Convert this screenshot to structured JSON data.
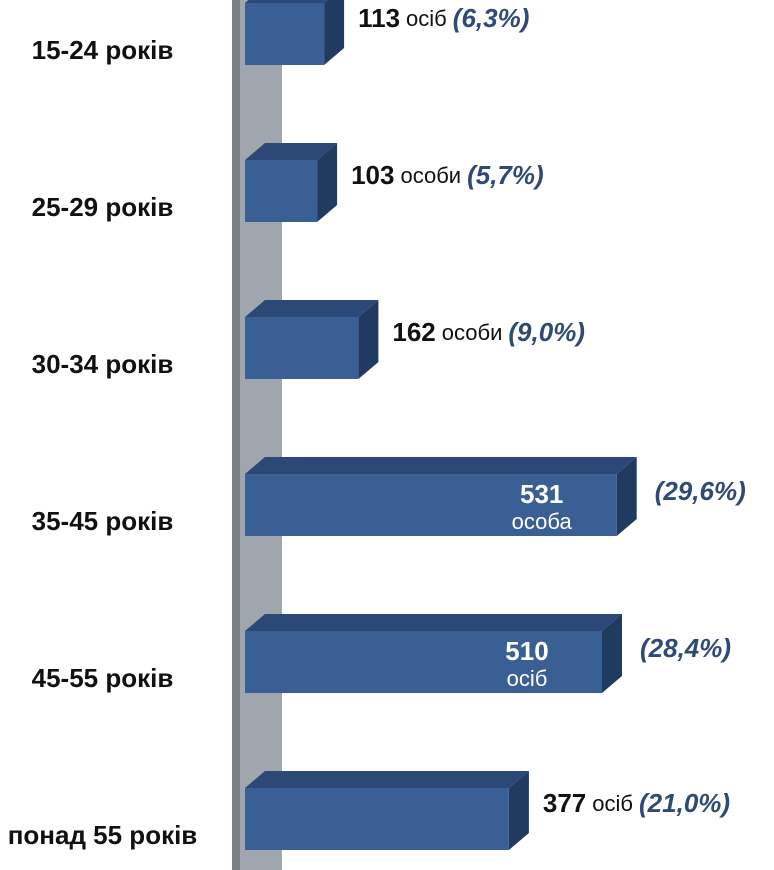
{
  "chart_data": {
    "type": "bar3d-horizontal",
    "categories": [
      "15-24 років",
      "25-29 років",
      "30-34 років",
      "35-45 років",
      "45-55 років",
      "понад 55 років"
    ],
    "values": [
      113,
      103,
      162,
      531,
      510,
      377
    ],
    "units": [
      "осіб",
      "особи",
      "особи",
      "особа",
      "осіб",
      "осіб"
    ],
    "percents": [
      6.3,
      5.7,
      9.0,
      29.6,
      28.4,
      21.0
    ],
    "percent_labels": [
      "(6,3%)",
      "(5,7%)",
      "(9,0%)",
      "(29,6%)",
      "(28,4%)",
      "(21,0%)"
    ],
    "color": "#3a5f95",
    "xlim": [
      0,
      600
    ]
  }
}
